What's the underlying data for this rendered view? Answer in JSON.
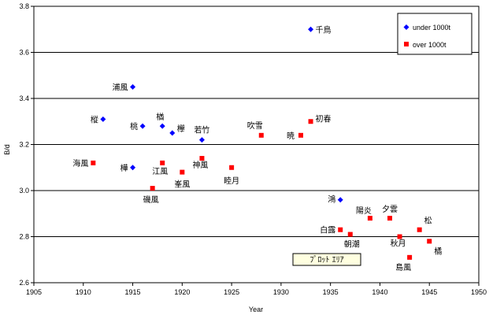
{
  "chart_data": {
    "type": "scatter",
    "xlabel": "Year",
    "ylabel": "B/d",
    "xlim": [
      1905,
      1950
    ],
    "ylim": [
      2.6,
      3.8
    ],
    "xticks": [
      "1905",
      "1910",
      "1915",
      "1920",
      "1925",
      "1930",
      "1935",
      "1940",
      "1945",
      "1950"
    ],
    "yticks": [
      "2.6",
      "2.8",
      "3.0",
      "3.2",
      "3.4",
      "3.6",
      "3.8"
    ],
    "grid": "horizontal",
    "legend_position": "top-right",
    "series": [
      {
        "name": "under 1000t",
        "marker": "diamond",
        "color": "#0000ff",
        "points": [
          {
            "x": 1912,
            "y": 3.31,
            "label": "樅"
          },
          {
            "x": 1915,
            "y": 3.45,
            "label": "浦風"
          },
          {
            "x": 1915,
            "y": 3.1,
            "label": "樺"
          },
          {
            "x": 1916,
            "y": 3.28,
            "label": "桃"
          },
          {
            "x": 1918,
            "y": 3.28,
            "label": "楢"
          },
          {
            "x": 1919,
            "y": 3.25,
            "label": "欅"
          },
          {
            "x": 1922,
            "y": 3.22,
            "label": "若竹"
          },
          {
            "x": 1933,
            "y": 3.7,
            "label": "千鳥"
          },
          {
            "x": 1936,
            "y": 2.96,
            "label": "鴻"
          }
        ]
      },
      {
        "name": "over 1000t",
        "marker": "square",
        "color": "#ff0000",
        "points": [
          {
            "x": 1911,
            "y": 3.12,
            "label": "海風"
          },
          {
            "x": 1917,
            "y": 3.01,
            "label": "磯風"
          },
          {
            "x": 1918,
            "y": 3.12,
            "label": "江風"
          },
          {
            "x": 1920,
            "y": 3.08,
            "label": "峯風"
          },
          {
            "x": 1922,
            "y": 3.14,
            "label": "神風"
          },
          {
            "x": 1925,
            "y": 3.1,
            "label": "睦月"
          },
          {
            "x": 1928,
            "y": 3.24,
            "label": "吹雪"
          },
          {
            "x": 1932,
            "y": 3.24,
            "label": "暁"
          },
          {
            "x": 1933,
            "y": 3.3,
            "label": "初春"
          },
          {
            "x": 1936,
            "y": 2.83,
            "label": "白露"
          },
          {
            "x": 1937,
            "y": 2.81,
            "label": "朝潮"
          },
          {
            "x": 1939,
            "y": 2.88,
            "label": "陽炎"
          },
          {
            "x": 1941,
            "y": 2.88,
            "label": "夕雲"
          },
          {
            "x": 1942,
            "y": 2.8,
            "label": "秋月"
          },
          {
            "x": 1943,
            "y": 2.71,
            "label": "島風"
          },
          {
            "x": 1944,
            "y": 2.83,
            "label": "松"
          },
          {
            "x": 1945,
            "y": 2.78,
            "label": "橘"
          }
        ]
      }
    ],
    "annotations": [
      {
        "text": "ﾌﾟﾛｯﾄ ｴﾘｱ"
      }
    ]
  }
}
